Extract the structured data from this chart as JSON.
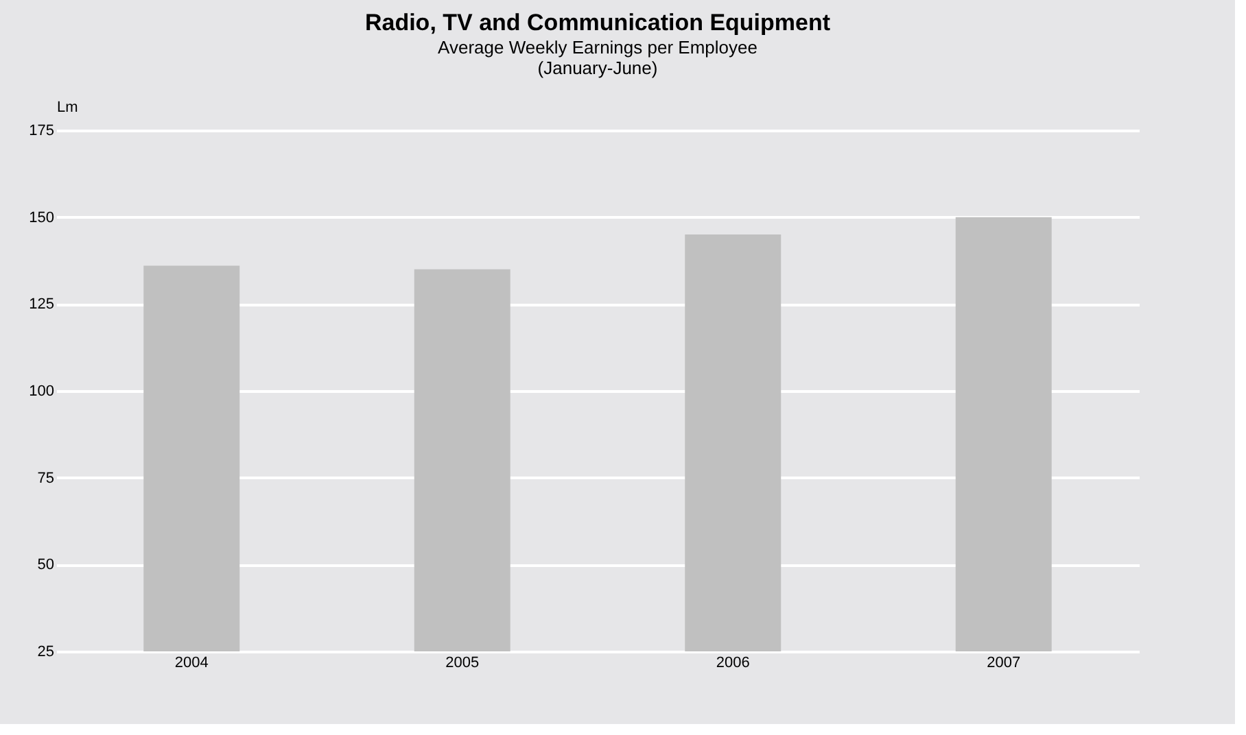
{
  "chart_data": {
    "type": "bar",
    "title": "Radio, TV and Communication Equipment",
    "subtitle": "Average Weekly Earnings per Employee\n(January-June)",
    "ylabel": "Lm",
    "categories": [
      "2004",
      "2005",
      "2006",
      "2007"
    ],
    "values": [
      136,
      135,
      145,
      150
    ],
    "color": "#c0c0c0",
    "ylim": [
      25,
      175
    ],
    "yticks": [
      25,
      50,
      75,
      100,
      125,
      150,
      175
    ],
    "grid": "y"
  }
}
